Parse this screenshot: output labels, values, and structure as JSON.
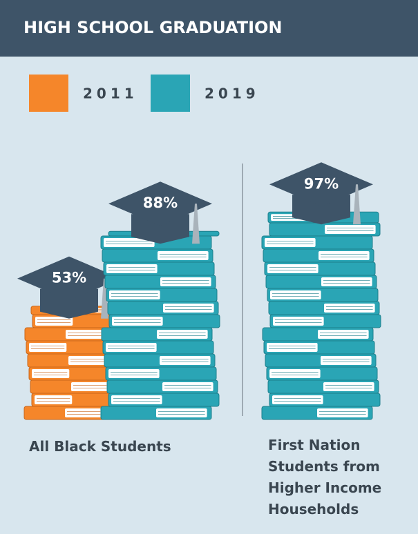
{
  "chart_data": {
    "type": "pictorial-bar",
    "title": "HIGH SCHOOL GRADUATION",
    "categories": [
      "All Black Students",
      "First Nation Students from Higher Income Households"
    ],
    "series": [
      {
        "name": "2011",
        "color": "#f5862a",
        "values": [
          53,
          null
        ],
        "value_labels": [
          "53%",
          null
        ]
      },
      {
        "name": "2019",
        "color": "#2aa5b5",
        "values": [
          88,
          97
        ],
        "value_labels": [
          "88%",
          "97%"
        ]
      }
    ]
  }
}
